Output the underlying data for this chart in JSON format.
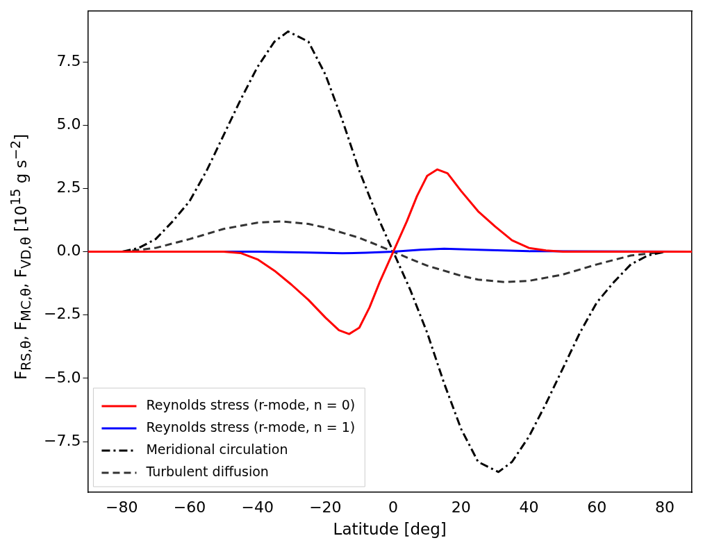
{
  "chart_data": {
    "type": "line",
    "xlabel": "Latitude [deg]",
    "ylabel": "F$_{RS,θ}$, F$_{MC,θ}$, F$_{VD,θ}$ [10$^{15}$ g s$^{−2}$]",
    "xlim": [
      -90,
      88
    ],
    "ylim": [
      -9.5,
      9.5
    ],
    "xticks": [
      {
        "value": -80,
        "label": "−80"
      },
      {
        "value": -60,
        "label": "−60"
      },
      {
        "value": -40,
        "label": "−40"
      },
      {
        "value": -20,
        "label": "−20"
      },
      0,
      20,
      40,
      60,
      80
    ],
    "yticks": [
      {
        "value": -7.5,
        "label": "−7.5"
      },
      {
        "value": -5,
        "label": "−5.0"
      },
      {
        "value": -2.5,
        "label": "−2.5"
      },
      {
        "value": 0,
        "label": "0.0"
      },
      {
        "value": 2.5,
        "label": "2.5"
      },
      {
        "value": 5,
        "label": "5.0"
      },
      {
        "value": 7.5,
        "label": "7.5"
      }
    ],
    "grid": false,
    "legend": "bottom left",
    "marker": "none",
    "series": [
      {
        "name": "Reynolds stress (r-mode, n = 0)",
        "color": "#ff0000",
        "line_style": "solid",
        "x": [
          -90,
          -50,
          -45,
          -40,
          -35,
          -30,
          -25,
          -20,
          -16,
          -13,
          -10,
          -7,
          -4,
          0,
          4,
          7,
          10,
          13,
          16,
          20,
          25,
          30,
          35,
          40,
          45,
          50,
          88
        ],
        "values": [
          0,
          0,
          -0.05,
          -0.3,
          -0.75,
          -1.3,
          -1.9,
          -2.6,
          -3.1,
          -3.25,
          -3.0,
          -2.2,
          -1.2,
          0,
          1.2,
          2.2,
          3.0,
          3.25,
          3.1,
          2.4,
          1.6,
          1.0,
          0.45,
          0.15,
          0.05,
          0,
          0
        ]
      },
      {
        "name": "Reynolds stress (r-mode, n = 1)",
        "color": "#0000ff",
        "line_style": "solid",
        "x": [
          -90,
          -40,
          -25,
          -15,
          -8,
          0,
          8,
          15,
          25,
          40,
          88
        ],
        "values": [
          0,
          0,
          -0.03,
          -0.06,
          -0.04,
          0,
          0.08,
          0.12,
          0.08,
          0.02,
          0
        ]
      },
      {
        "name": "Meridional circulation",
        "color": "#000000",
        "line_style": "dashdot",
        "x": [
          -90,
          -80,
          -75,
          -70,
          -65,
          -60,
          -55,
          -50,
          -45,
          -40,
          -35,
          -31,
          -25,
          -20,
          -15,
          -10,
          -5,
          0,
          5,
          10,
          15,
          20,
          25,
          31,
          35,
          40,
          45,
          50,
          55,
          60,
          65,
          70,
          75,
          80,
          88
        ],
        "values": [
          0,
          0,
          0.15,
          0.5,
          1.2,
          2.0,
          3.2,
          4.6,
          6.0,
          7.3,
          8.3,
          8.7,
          8.3,
          7.0,
          5.2,
          3.2,
          1.5,
          0,
          -1.5,
          -3.2,
          -5.2,
          -7.0,
          -8.3,
          -8.7,
          -8.3,
          -7.3,
          -6.0,
          -4.6,
          -3.2,
          -2.0,
          -1.2,
          -0.5,
          -0.15,
          0,
          0
        ]
      },
      {
        "name": "Turbulent diffusion",
        "color": "#333333",
        "line_style": "dashed",
        "x": [
          -90,
          -80,
          -70,
          -60,
          -50,
          -40,
          -33,
          -25,
          -20,
          -10,
          -5,
          0,
          5,
          10,
          20,
          25,
          33,
          40,
          50,
          60,
          70,
          80,
          88
        ],
        "values": [
          0,
          0,
          0.15,
          0.5,
          0.9,
          1.15,
          1.2,
          1.1,
          0.95,
          0.55,
          0.28,
          0,
          -0.28,
          -0.55,
          -0.95,
          -1.1,
          -1.2,
          -1.15,
          -0.9,
          -0.5,
          -0.15,
          0,
          0
        ]
      }
    ]
  }
}
